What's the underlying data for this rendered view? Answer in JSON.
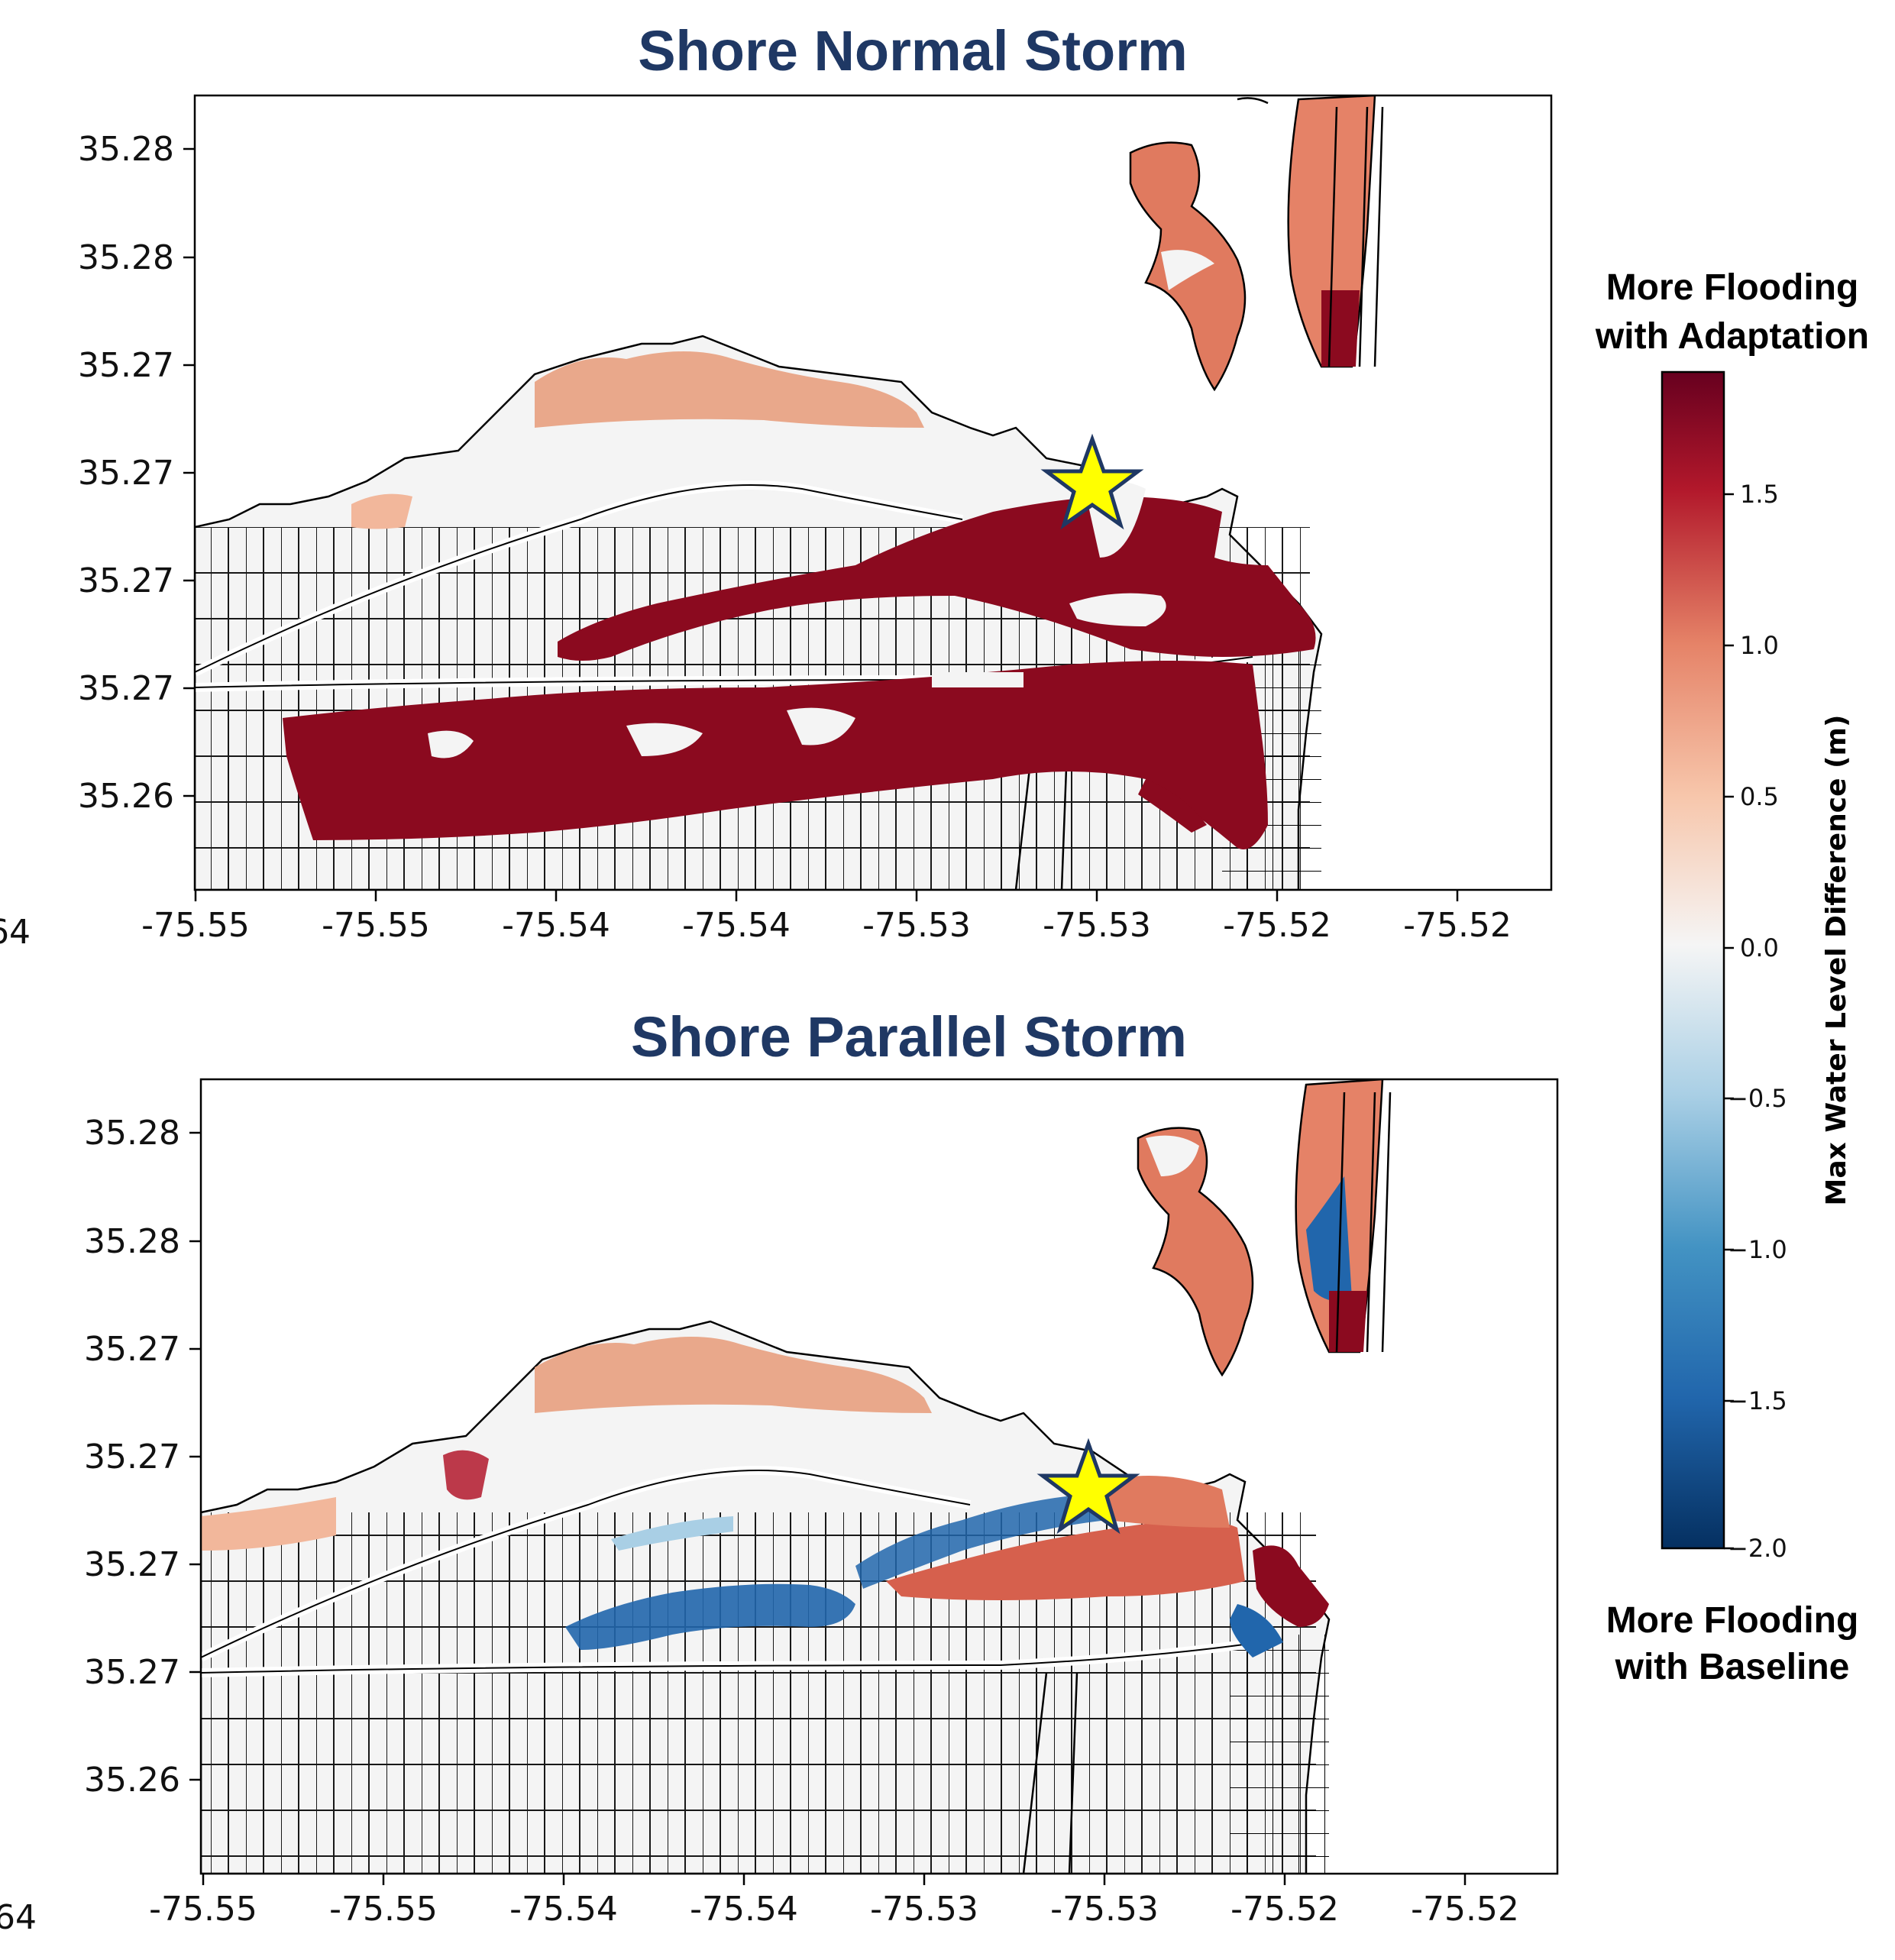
{
  "chart_data": [
    {
      "type": "heatmap",
      "title": "Shore Normal Storm",
      "xlabel": "",
      "ylabel": "",
      "x_tick_labels": [
        "-75.55",
        "-75.55",
        "-75.54",
        "-75.54",
        "-75.53",
        "-75.53",
        "-75.52",
        "-75.52"
      ],
      "y_tick_labels": [
        "35.28",
        "35.28",
        "35.27",
        "35.27",
        "35.27",
        "35.27",
        "35.26"
      ],
      "clipped_y_label": "64",
      "colormap": "RdBu_r",
      "vmin": -2.0,
      "vmax": 1.9,
      "dominant_values": "positive, up to ~1.9 m (more flooding with adaptation)",
      "marker": "star (yellow)"
    },
    {
      "type": "heatmap",
      "title": "Shore Parallel Storm",
      "xlabel": "",
      "ylabel": "",
      "x_tick_labels": [
        "-75.55",
        "-75.55",
        "-75.54",
        "-75.54",
        "-75.53",
        "-75.53",
        "-75.52",
        "-75.52"
      ],
      "y_tick_labels": [
        "35.28",
        "35.28",
        "35.27",
        "35.27",
        "35.27",
        "35.27",
        "35.26"
      ],
      "clipped_y_label": "64",
      "colormap": "RdBu_r",
      "vmin": -2.0,
      "vmax": 1.9,
      "dominant_values": "mixed: positive (~0.5–1.9 m) along shore, negative (~-1.0 to -2.0 m) inland band",
      "marker": "star (yellow)"
    }
  ],
  "colorbar": {
    "label": "Max Water Level Difference (m)",
    "ticks": [
      "1.5",
      "1.0",
      "0.5",
      "0.0",
      "−0.5",
      "−1.0",
      "−1.5",
      "−2.0"
    ],
    "tick_values": [
      1.5,
      1.0,
      0.5,
      0.0,
      -0.5,
      -1.0,
      -1.5,
      -2.0
    ],
    "min": -2.0,
    "max": 1.9,
    "top_note_line1": "More Flooding",
    "top_note_line2": "with Adaptation",
    "bottom_note_line1": "More Flooding",
    "bottom_note_line2": "with Baseline",
    "colors": {
      "max": "#67001f",
      "high": "#b2182b",
      "mid_high": "#e58267",
      "light_pos": "#f7c6ab",
      "zero": "#f5f5f5",
      "light_neg": "#a9cfe5",
      "mid_neg": "#4393c3",
      "low": "#2166ac",
      "min": "#053061"
    }
  },
  "colors": {
    "title": "#1f3864",
    "land": "#f4f4f4",
    "parcel_line": "#000000",
    "star_fill": "#ffff00",
    "star_stroke": "#1f3864"
  }
}
